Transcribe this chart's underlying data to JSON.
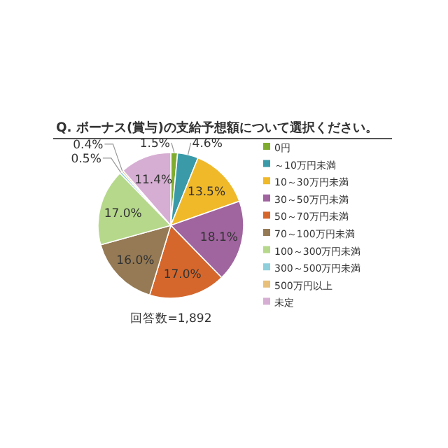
{
  "chart_data": {
    "type": "pie",
    "title": "Q. ボーナス(賞与)の支給予想額について選択ください。",
    "categories": [
      "0円",
      "～10万円未満",
      "10～30万円未満",
      "30～50万円未満",
      "50～70万円未満",
      "70～100万円未満",
      "100～300万円未満",
      "300～500万円未満",
      "500万円以上",
      "未定"
    ],
    "values": [
      1.5,
      4.6,
      13.5,
      18.1,
      17.0,
      16.0,
      17.0,
      0.5,
      0.4,
      11.4
    ],
    "value_labels": [
      "1.5%",
      "4.6%",
      "13.5%",
      "18.1%",
      "17.0%",
      "16.0%",
      "17.0%",
      "0.5%",
      "0.4%",
      "11.4%"
    ],
    "colors": [
      "#7fac2e",
      "#3a9aa8",
      "#f0b92a",
      "#a0649f",
      "#d5672c",
      "#957a55",
      "#b5d88a",
      "#8fcfdc",
      "#e8c07a",
      "#d6aed3"
    ],
    "legend": "right",
    "annotations": [
      "回答数=1,892"
    ]
  }
}
